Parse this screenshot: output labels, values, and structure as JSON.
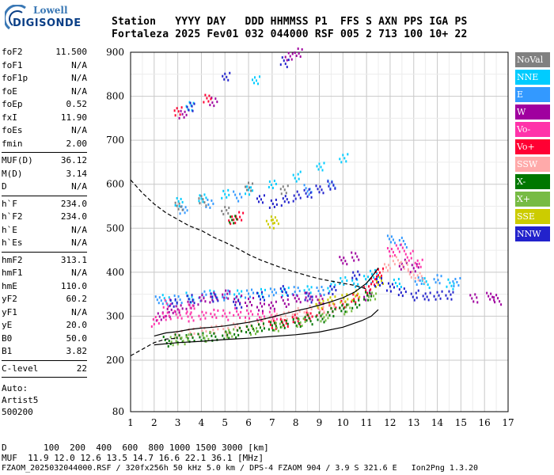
{
  "brand": {
    "line1": "Lowell",
    "line2": "DIGISONDE"
  },
  "header": {
    "line1": "Station   YYYY DAY   DDD HHMMSS P1  FFS S AXN PPS IGA PS",
    "line2": "Fortaleza 2025 Fev01 032 044000 RSF 005 2 713 100 10+ 22"
  },
  "params": {
    "group1": [
      {
        "k": "foF2",
        "v": "11.500"
      },
      {
        "k": "foF1",
        "v": "N/A"
      },
      {
        "k": "foF1p",
        "v": "N/A"
      },
      {
        "k": "foE",
        "v": "N/A"
      },
      {
        "k": "foEp",
        "v": "0.52"
      },
      {
        "k": "fxI",
        "v": "11.90"
      },
      {
        "k": "foEs",
        "v": "N/A"
      },
      {
        "k": "fmin",
        "v": "2.00"
      }
    ],
    "group2": [
      {
        "k": "MUF(D)",
        "v": "36.12"
      },
      {
        "k": "M(D)",
        "v": "3.14"
      },
      {
        "k": "D",
        "v": "N/A"
      }
    ],
    "group3": [
      {
        "k": "h`F",
        "v": "234.0"
      },
      {
        "k": "h`F2",
        "v": "234.0"
      },
      {
        "k": "h`E",
        "v": "N/A"
      },
      {
        "k": "h`Es",
        "v": "N/A"
      }
    ],
    "group4": [
      {
        "k": "hmF2",
        "v": "313.1"
      },
      {
        "k": "hmF1",
        "v": "N/A"
      },
      {
        "k": "hmE",
        "v": "110.0"
      },
      {
        "k": "yF2",
        "v": "60.2"
      },
      {
        "k": "yF1",
        "v": "N/A"
      },
      {
        "k": "yE",
        "v": "20.0"
      },
      {
        "k": "B0",
        "v": "50.0"
      },
      {
        "k": "B1",
        "v": "3.82"
      }
    ],
    "group5": [
      {
        "k": "C-level",
        "v": "22"
      }
    ],
    "auto": [
      "Auto:",
      "Artist5",
      "500200"
    ]
  },
  "legend": [
    {
      "label": "NoVal",
      "color": "#808080"
    },
    {
      "label": "NNE",
      "color": "#00ccff"
    },
    {
      "label": "E",
      "color": "#3399ff"
    },
    {
      "label": "W",
      "color": "#a0009f"
    },
    {
      "label": "Vo-",
      "color": "#ff33aa"
    },
    {
      "label": "Vo+",
      "color": "#ff0033"
    },
    {
      "label": "SSW",
      "color": "#ffaaaa"
    },
    {
      "label": "X-",
      "color": "#007700"
    },
    {
      "label": "X+",
      "color": "#77bb44"
    },
    {
      "label": "SSE",
      "color": "#cccc00"
    },
    {
      "label": "NNW",
      "color": "#2222cc"
    }
  ],
  "bottom": {
    "line1": "D       100  200  400  600  800 1000 1500 3000 [km]",
    "line2": "MUF  11.9 12.0 12.6 13.5 14.7 16.6 22.1 36.1 [MHz]",
    "line3": "FZAOM_2025032044000.RSF / 320fx256h 50 kHz 5.0 km / DPS-4 FZAOM 904 / 3.9 S 321.6 E   Ion2Png 1.3.20"
  },
  "chart_data": {
    "type": "scatter",
    "x_ticks": [
      "1",
      "2",
      "3",
      "4",
      "5",
      "6",
      "7",
      "8",
      "9",
      "10",
      "11",
      "12",
      "13",
      "14",
      "15",
      "16",
      "17"
    ],
    "y_ticks": [
      "80",
      "200",
      "300",
      "400",
      "500",
      "600",
      "700",
      "800",
      "900"
    ],
    "xlim": [
      1,
      17
    ],
    "ylim": [
      80,
      900
    ],
    "grid": true,
    "legend_position": "right",
    "series": [
      {
        "name": "NNE",
        "color": "#00ccff",
        "points": [
          [
            2.5,
            340
          ],
          [
            3.5,
            345
          ],
          [
            4.5,
            350
          ],
          [
            5.5,
            352
          ],
          [
            6.5,
            355
          ],
          [
            7.5,
            360
          ],
          [
            8.5,
            365
          ],
          [
            9.5,
            370
          ],
          [
            10.0,
            380
          ],
          [
            10.5,
            375
          ],
          [
            11.0,
            385
          ],
          [
            11.3,
            400
          ],
          [
            12.3,
            380
          ],
          [
            13.5,
            378
          ],
          [
            14.5,
            375
          ],
          [
            3.0,
            560
          ],
          [
            4.0,
            570
          ],
          [
            5.0,
            580
          ],
          [
            6.0,
            590
          ],
          [
            7.0,
            605
          ],
          [
            8.0,
            620
          ],
          [
            9.0,
            640
          ],
          [
            10.0,
            660
          ],
          [
            3.5,
            780
          ],
          [
            6.3,
            840
          ]
        ]
      },
      {
        "name": "E",
        "color": "#3399ff",
        "points": [
          [
            2.2,
            340
          ],
          [
            3.0,
            342
          ],
          [
            4.0,
            348
          ],
          [
            5.0,
            350
          ],
          [
            6.0,
            352
          ],
          [
            7.0,
            356
          ],
          [
            8.0,
            360
          ],
          [
            9.0,
            362
          ],
          [
            12.0,
            480
          ],
          [
            12.5,
            470
          ],
          [
            13.2,
            380
          ],
          [
            14.0,
            385
          ],
          [
            14.8,
            380
          ],
          [
            3.2,
            545
          ],
          [
            4.3,
            560
          ],
          [
            5.5,
            575
          ],
          [
            8.5,
            590
          ],
          [
            9.5,
            600
          ]
        ]
      },
      {
        "name": "W",
        "color": "#a0009f",
        "points": [
          [
            2.2,
            300
          ],
          [
            2.6,
            310
          ],
          [
            3.0,
            320
          ],
          [
            3.5,
            330
          ],
          [
            4.0,
            340
          ],
          [
            4.5,
            345
          ],
          [
            5.0,
            350
          ],
          [
            5.5,
            340
          ],
          [
            6.0,
            335
          ],
          [
            6.5,
            325
          ],
          [
            7.0,
            330
          ],
          [
            7.5,
            335
          ],
          [
            8.0,
            340
          ],
          [
            8.5,
            345
          ],
          [
            9.0,
            340
          ],
          [
            10.0,
            430
          ],
          [
            10.5,
            440
          ],
          [
            11.0,
            350
          ],
          [
            12.5,
            420
          ],
          [
            13.0,
            410
          ],
          [
            3.2,
            760
          ],
          [
            4.5,
            790
          ],
          [
            15.5,
            345
          ],
          [
            16.2,
            350
          ],
          [
            16.5,
            340
          ],
          [
            7.7,
            890
          ],
          [
            8.1,
            900
          ]
        ]
      },
      {
        "name": "Vo-",
        "color": "#ff33aa",
        "points": [
          [
            2.0,
            290
          ],
          [
            2.5,
            300
          ],
          [
            3.0,
            305
          ],
          [
            3.5,
            300
          ],
          [
            4.0,
            305
          ],
          [
            4.5,
            310
          ],
          [
            5.0,
            305
          ],
          [
            5.5,
            310
          ],
          [
            6.0,
            305
          ],
          [
            6.5,
            300
          ],
          [
            7.0,
            305
          ],
          [
            12.0,
            450
          ],
          [
            12.4,
            460
          ],
          [
            12.8,
            440
          ],
          [
            13.2,
            420
          ],
          [
            2.5,
            330
          ],
          [
            3.5,
            320
          ]
        ]
      },
      {
        "name": "Vo+",
        "color": "#ff0033",
        "points": [
          [
            7.0,
            285
          ],
          [
            7.5,
            290
          ],
          [
            8.0,
            295
          ],
          [
            8.5,
            300
          ],
          [
            9.0,
            310
          ],
          [
            9.5,
            320
          ],
          [
            10.0,
            330
          ],
          [
            10.5,
            345
          ],
          [
            11.0,
            365
          ],
          [
            11.3,
            385
          ],
          [
            11.5,
            400
          ],
          [
            5.3,
            520
          ],
          [
            5.6,
            530
          ],
          [
            3.0,
            770
          ],
          [
            4.2,
            800
          ]
        ]
      },
      {
        "name": "SSW",
        "color": "#ffaaaa",
        "points": [
          [
            3.0,
            260
          ],
          [
            3.5,
            265
          ],
          [
            4.0,
            270
          ],
          [
            4.5,
            275
          ],
          [
            5.0,
            270
          ],
          [
            5.5,
            275
          ],
          [
            6.0,
            280
          ],
          [
            6.5,
            290
          ],
          [
            7.0,
            300
          ],
          [
            7.5,
            305
          ],
          [
            8.0,
            310
          ],
          [
            8.5,
            315
          ],
          [
            9.0,
            320
          ],
          [
            9.5,
            325
          ],
          [
            12.2,
            430
          ],
          [
            12.6,
            420
          ],
          [
            12.9,
            400
          ],
          [
            13.3,
            390
          ],
          [
            11.8,
            410
          ]
        ]
      },
      {
        "name": "X-",
        "color": "#007700",
        "points": [
          [
            2.5,
            245
          ],
          [
            3.0,
            250
          ],
          [
            3.5,
            252
          ],
          [
            4.0,
            255
          ],
          [
            4.5,
            258
          ],
          [
            5.0,
            262
          ],
          [
            5.5,
            265
          ],
          [
            6.0,
            270
          ],
          [
            6.5,
            275
          ],
          [
            7.0,
            280
          ],
          [
            7.5,
            285
          ],
          [
            8.0,
            290
          ],
          [
            8.5,
            295
          ],
          [
            9.0,
            300
          ],
          [
            9.5,
            310
          ],
          [
            10.0,
            320
          ],
          [
            10.5,
            330
          ],
          [
            11.0,
            350
          ],
          [
            5.3,
            525
          ]
        ]
      },
      {
        "name": "X+",
        "color": "#77bb44",
        "points": [
          [
            2.8,
            248
          ],
          [
            3.3,
            250
          ],
          [
            4.2,
            256
          ],
          [
            5.2,
            262
          ],
          [
            6.2,
            268
          ],
          [
            7.2,
            278
          ],
          [
            8.2,
            290
          ],
          [
            9.2,
            302
          ],
          [
            10.2,
            318
          ],
          [
            11.2,
            345
          ]
        ]
      },
      {
        "name": "SSE",
        "color": "#cccc00",
        "points": [
          [
            9.0,
            330
          ],
          [
            9.5,
            340
          ],
          [
            10.0,
            345
          ],
          [
            10.5,
            350
          ],
          [
            11.5,
            380
          ],
          [
            6.9,
            510
          ],
          [
            7.1,
            520
          ]
        ]
      },
      {
        "name": "NNW",
        "color": "#2222cc",
        "points": [
          [
            2.8,
            330
          ],
          [
            3.5,
            340
          ],
          [
            4.5,
            345
          ],
          [
            5.5,
            330
          ],
          [
            6.5,
            350
          ],
          [
            7.5,
            360
          ],
          [
            8.5,
            345
          ],
          [
            9.5,
            360
          ],
          [
            10.5,
            395
          ],
          [
            11.5,
            380
          ],
          [
            12.0,
            370
          ],
          [
            12.5,
            360
          ],
          [
            13.0,
            350
          ],
          [
            13.5,
            345
          ],
          [
            14.0,
            348
          ],
          [
            14.5,
            350
          ],
          [
            6.5,
            570
          ],
          [
            7.0,
            560
          ],
          [
            7.5,
            565
          ],
          [
            8.0,
            575
          ],
          [
            8.5,
            580
          ],
          [
            9.0,
            590
          ],
          [
            9.5,
            600
          ],
          [
            3.5,
            780
          ],
          [
            5.0,
            850
          ],
          [
            7.5,
            880
          ]
        ]
      },
      {
        "name": "NoVal",
        "color": "#808080",
        "points": [
          [
            3.0,
            555
          ],
          [
            4.0,
            565
          ],
          [
            5.0,
            540
          ],
          [
            6.0,
            595
          ],
          [
            7.5,
            590
          ]
        ]
      }
    ],
    "lines": [
      {
        "style": "dashed",
        "color": "#000000",
        "points": [
          [
            1.0,
            610
          ],
          [
            1.5,
            580
          ],
          [
            2.0,
            555
          ],
          [
            2.5,
            535
          ],
          [
            3.0,
            520
          ],
          [
            3.5,
            505
          ],
          [
            4.0,
            495
          ],
          [
            4.5,
            480
          ],
          [
            5.0,
            468
          ],
          [
            5.5,
            455
          ],
          [
            6.0,
            440
          ],
          [
            6.5,
            428
          ],
          [
            7.0,
            418
          ],
          [
            7.5,
            408
          ],
          [
            8.0,
            400
          ],
          [
            8.5,
            392
          ],
          [
            9.0,
            385
          ],
          [
            9.5,
            380
          ],
          [
            10.0,
            375
          ],
          [
            10.5,
            370
          ],
          [
            11.0,
            362
          ]
        ]
      },
      {
        "style": "dashed",
        "color": "#000000",
        "points": [
          [
            1.0,
            210
          ],
          [
            1.5,
            225
          ],
          [
            2.0,
            240
          ],
          [
            2.5,
            248
          ],
          [
            3.0,
            250
          ]
        ]
      },
      {
        "style": "solid",
        "color": "#000000",
        "points": [
          [
            2.0,
            235
          ],
          [
            3.0,
            240
          ],
          [
            4.0,
            243
          ],
          [
            5.0,
            247
          ],
          [
            6.0,
            250
          ],
          [
            7.0,
            254
          ],
          [
            8.0,
            258
          ],
          [
            9.0,
            264
          ],
          [
            10.0,
            275
          ],
          [
            10.8,
            290
          ],
          [
            11.2,
            300
          ],
          [
            11.5,
            315
          ]
        ]
      },
      {
        "style": "solid",
        "color": "#000000",
        "points": [
          [
            2.0,
            255
          ],
          [
            2.5,
            262
          ],
          [
            3.0,
            265
          ],
          [
            3.5,
            270
          ],
          [
            4.0,
            273
          ],
          [
            4.5,
            275
          ],
          [
            5.0,
            278
          ],
          [
            5.5,
            282
          ],
          [
            6.0,
            286
          ],
          [
            6.5,
            292
          ],
          [
            7.0,
            298
          ],
          [
            7.5,
            305
          ],
          [
            8.0,
            312
          ],
          [
            8.5,
            318
          ],
          [
            9.0,
            325
          ],
          [
            9.5,
            333
          ],
          [
            10.0,
            342
          ],
          [
            10.5,
            355
          ],
          [
            11.0,
            375
          ],
          [
            11.3,
            395
          ],
          [
            11.5,
            410
          ]
        ]
      }
    ]
  }
}
